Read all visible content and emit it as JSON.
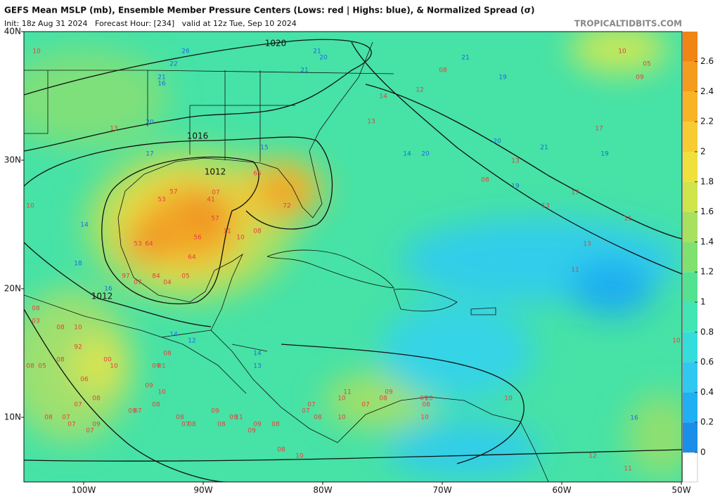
{
  "header": {
    "title": "GEFS Mean MSLP (mb), Ensemble Member Pressure Centers (Lows: red | Highs: blue), & Normalized Spread (σ)",
    "subtitle": "Init: 18z Aug 31 2024   Forecast Hour: [234]   valid at 12z Tue, Sep 10 2024",
    "brand": "TROPICALTIDBITS.COM"
  },
  "map": {
    "lat_labels": [
      "40N",
      "30N",
      "20N",
      "10N"
    ],
    "lon_labels": [
      "100W",
      "90W",
      "80W",
      "70W",
      "60W",
      "50W"
    ],
    "isobar_labels": [
      "1020",
      "1016",
      "1012",
      "1012"
    ],
    "low_color": "#e5403a",
    "high_color": "#1a6ae0",
    "lows": [
      "10",
      "13",
      "10",
      "08",
      "12",
      "14",
      "13",
      "10",
      "05",
      "09",
      "17",
      "13",
      "08",
      "17",
      "13",
      "11",
      "13",
      "11",
      "10",
      "57",
      "07",
      "53",
      "41",
      "57",
      "11",
      "56",
      "10",
      "08",
      "53",
      "64",
      "64",
      "97",
      "07",
      "84",
      "04",
      "05",
      "65",
      "72",
      "08",
      "03",
      "08",
      "10",
      "92",
      "08",
      "05",
      "08",
      "00",
      "10",
      "06",
      "09",
      "01",
      "08",
      "09",
      "10",
      "07",
      "08",
      "09",
      "07",
      "08",
      "08",
      "07",
      "07",
      "09",
      "07",
      "09",
      "08",
      "07",
      "08",
      "08",
      "09",
      "11",
      "09",
      "09",
      "08",
      "11",
      "10",
      "07",
      "07",
      "08",
      "10",
      "09",
      "08",
      "07",
      "09",
      "10",
      "10",
      "08",
      "10",
      "08",
      "10",
      "12",
      "11"
    ],
    "highs": [
      "26",
      "22",
      "21",
      "20",
      "21",
      "21",
      "16",
      "20",
      "17",
      "14",
      "18",
      "16",
      "14",
      "12",
      "14",
      "13",
      "21",
      "19",
      "20",
      "21",
      "19",
      "19",
      "14",
      "20",
      "16",
      "15"
    ]
  },
  "colorbar": {
    "ticks": [
      0,
      0.2,
      0.4,
      0.6,
      0.8,
      1,
      1.2,
      1.4,
      1.6,
      1.8,
      2,
      2.2,
      2.4,
      2.6
    ],
    "colors": [
      "#1a8ee8",
      "#1eb0f2",
      "#30c8f0",
      "#34dcdc",
      "#42e6b4",
      "#52e290",
      "#80e070",
      "#a8e060",
      "#d0e44c",
      "#f0e03c",
      "#f8cc30",
      "#f8b424",
      "#f49c1e",
      "#f08414"
    ]
  }
}
